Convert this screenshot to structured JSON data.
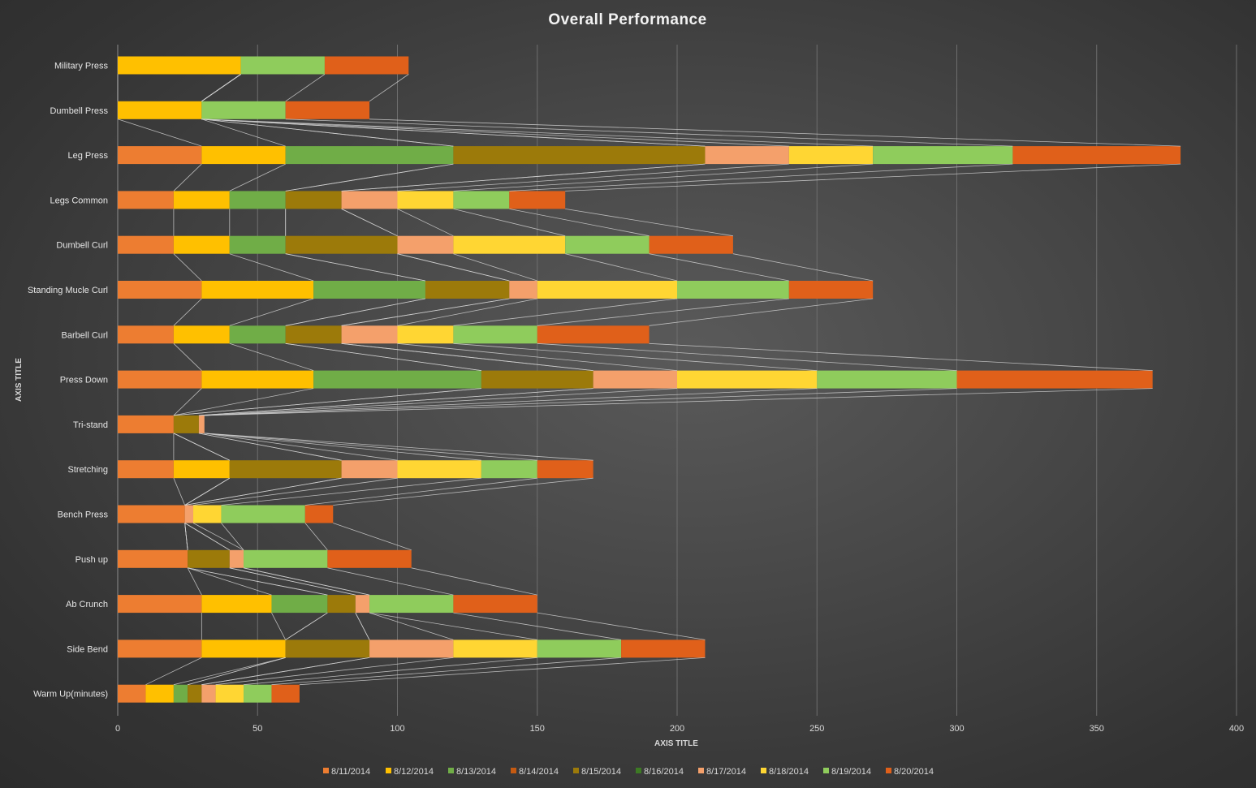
{
  "chart_data": {
    "type": "bar",
    "orientation": "horizontal",
    "stacked": true,
    "title": "Overall  Performance",
    "xlabel": "AXIS TITLE",
    "ylabel": "AXIS TITLE",
    "xlim": [
      0,
      400
    ],
    "xticks": [
      0,
      50,
      100,
      150,
      200,
      250,
      300,
      350,
      400
    ],
    "grid": "vertical",
    "legend": "bottom",
    "series_lines": true,
    "categories": [
      "Military Press",
      "Dumbell Press",
      "Leg Press",
      "Legs Common",
      "Dumbell Curl",
      "Standing Mucle Curl",
      "Barbell Curl",
      "Press Down",
      "Tri-stand",
      "Stretching",
      "Bench Press",
      "Push up",
      "Ab Crunch",
      "Side Bend",
      "Warm Up(minutes)"
    ],
    "series": [
      {
        "name": "8/11/2014",
        "color": "#ed7d31",
        "values": [
          0,
          0,
          30,
          20,
          20,
          30,
          20,
          30,
          20,
          20,
          24,
          25,
          30,
          30,
          10
        ]
      },
      {
        "name": "8/12/2014",
        "color": "#ffc000",
        "values": [
          44,
          30,
          30,
          20,
          20,
          40,
          20,
          40,
          0,
          20,
          0,
          0,
          25,
          30,
          10
        ]
      },
      {
        "name": "8/13/2014",
        "color": "#70ad47",
        "values": [
          0,
          0,
          60,
          20,
          20,
          40,
          20,
          60,
          0,
          0,
          0,
          0,
          20,
          0,
          5
        ]
      },
      {
        "name": "8/14/2014",
        "color": "#c55a11",
        "values": [
          0,
          0,
          0,
          0,
          0,
          0,
          0,
          0,
          0,
          0,
          0,
          0,
          0,
          0,
          0
        ]
      },
      {
        "name": "8/15/2014",
        "color": "#9c7a0a",
        "values": [
          0,
          0,
          90,
          20,
          40,
          30,
          20,
          40,
          9,
          40,
          0,
          15,
          10,
          30,
          5
        ]
      },
      {
        "name": "8/16/2014",
        "color": "#3d7a24",
        "values": [
          0,
          0,
          0,
          0,
          0,
          0,
          0,
          0,
          0,
          0,
          0,
          0,
          0,
          0,
          0
        ]
      },
      {
        "name": "8/17/2014",
        "color": "#f4a06b",
        "values": [
          0,
          0,
          30,
          20,
          20,
          10,
          20,
          30,
          2,
          20,
          3,
          5,
          5,
          30,
          5
        ]
      },
      {
        "name": "8/18/2014",
        "color": "#ffd633",
        "values": [
          0,
          0,
          30,
          20,
          40,
          50,
          20,
          50,
          0,
          30,
          10,
          0,
          0,
          30,
          10
        ]
      },
      {
        "name": "8/19/2014",
        "color": "#8fcc5c",
        "values": [
          30,
          30,
          50,
          20,
          30,
          40,
          30,
          50,
          0,
          20,
          30,
          30,
          30,
          30,
          10
        ]
      },
      {
        "name": "8/20/2014",
        "color": "#e0601a",
        "values": [
          30,
          30,
          60,
          20,
          30,
          30,
          40,
          70,
          0,
          20,
          10,
          30,
          30,
          30,
          10
        ]
      }
    ]
  }
}
